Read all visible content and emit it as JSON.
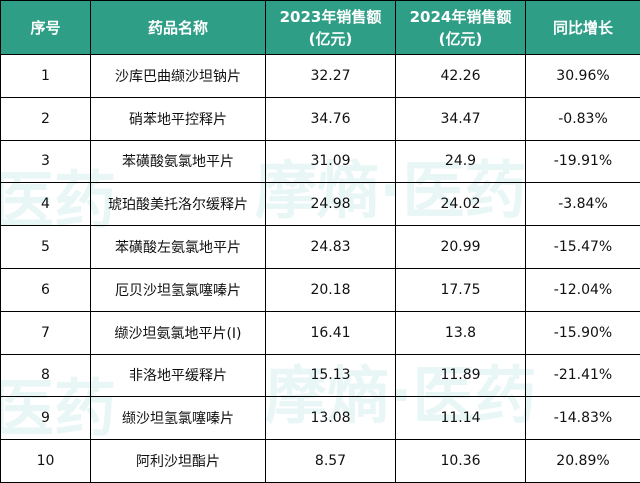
{
  "table": {
    "headers": {
      "seq": "序号",
      "drug": "药品名称",
      "s2023_line1": "2023年销售额",
      "s2023_line2": "(亿元)",
      "s2024_line1": "2024年销售额",
      "s2024_line2": "(亿元)",
      "yoy": "同比增长"
    },
    "rows": [
      {
        "seq": "1",
        "drug": "沙库巴曲缬沙坦钠片",
        "s2023": "32.27",
        "s2024": "42.26",
        "yoy": "30.96%"
      },
      {
        "seq": "2",
        "drug": "硝苯地平控释片",
        "s2023": "34.76",
        "s2024": "34.47",
        "yoy": "-0.83%"
      },
      {
        "seq": "3",
        "drug": "苯磺酸氨氯地平片",
        "s2023": "31.09",
        "s2024": "24.9",
        "yoy": "-19.91%"
      },
      {
        "seq": "4",
        "drug": "琥珀酸美托洛尔缓释片",
        "s2023": "24.98",
        "s2024": "24.02",
        "yoy": "-3.84%"
      },
      {
        "seq": "5",
        "drug": "苯磺酸左氨氯地平片",
        "s2023": "24.83",
        "s2024": "20.99",
        "yoy": "-15.47%"
      },
      {
        "seq": "6",
        "drug": "厄贝沙坦氢氯噻嗪片",
        "s2023": "20.18",
        "s2024": "17.75",
        "yoy": "-12.04%"
      },
      {
        "seq": "7",
        "drug": "缬沙坦氨氯地平片(Ⅰ)",
        "s2023": "16.41",
        "s2024": "13.8",
        "yoy": "-15.90%"
      },
      {
        "seq": "8",
        "drug": "非洛地平缓释片",
        "s2023": "15.13",
        "s2024": "11.89",
        "yoy": "-21.41%"
      },
      {
        "seq": "9",
        "drug": "缬沙坦氢氯噻嗪片",
        "s2023": "13.08",
        "s2024": "11.14",
        "yoy": "-14.83%"
      },
      {
        "seq": "10",
        "drug": "阿利沙坦酯片",
        "s2023": "8.57",
        "s2024": "10.36",
        "yoy": "20.89%"
      }
    ]
  },
  "watermark": {
    "text": "摩熵·医药",
    "text_partial": "医药"
  },
  "colors": {
    "header_bg": "#2e9e86",
    "header_text": "#ffffff",
    "positive": "#e03030",
    "normal": "#111111"
  }
}
